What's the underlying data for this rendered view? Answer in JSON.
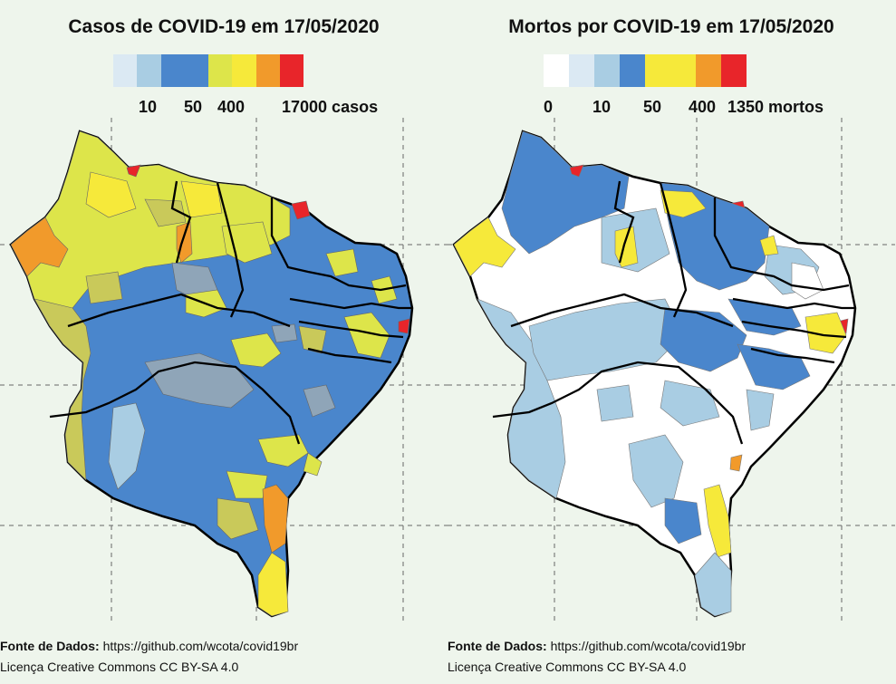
{
  "left_map": {
    "title": "Casos de COVID-19 em 17/05/2020",
    "legend": {
      "colors": [
        "#dbe9f3",
        "#a9cde3",
        "#4a86cc",
        "#4a86cc",
        "#dde54a",
        "#f6e93a",
        "#f19a2b",
        "#e8252a"
      ],
      "labels": [
        "10",
        "50",
        "400",
        "17000 casos"
      ]
    },
    "footer_source_label": "Fonte de Dados:",
    "footer_source_url": "https://github.com/wcota/covid19br",
    "footer_license": "Licença Creative Commons CC BY-SA 4.0"
  },
  "right_map": {
    "title": "Mortos por COVID-19 em 17/05/2020",
    "legend": {
      "colors": [
        "#ffffff",
        "#dbe9f3",
        "#a9cde3",
        "#4a86cc",
        "#f6e93a",
        "#f6e93a",
        "#f19a2b",
        "#e8252a"
      ],
      "labels": [
        "0",
        "10",
        "50",
        "400",
        "1350 mortos"
      ]
    },
    "footer_source_label": "Fonte de Dados:",
    "footer_source_url": "https://github.com/wcota/covid19br",
    "footer_license": "Licença Creative Commons CC BY-SA 4.0"
  },
  "colors": {
    "background": "#eef5ec",
    "state_border": "#000000",
    "municipality_border": "#c8c8c8"
  }
}
